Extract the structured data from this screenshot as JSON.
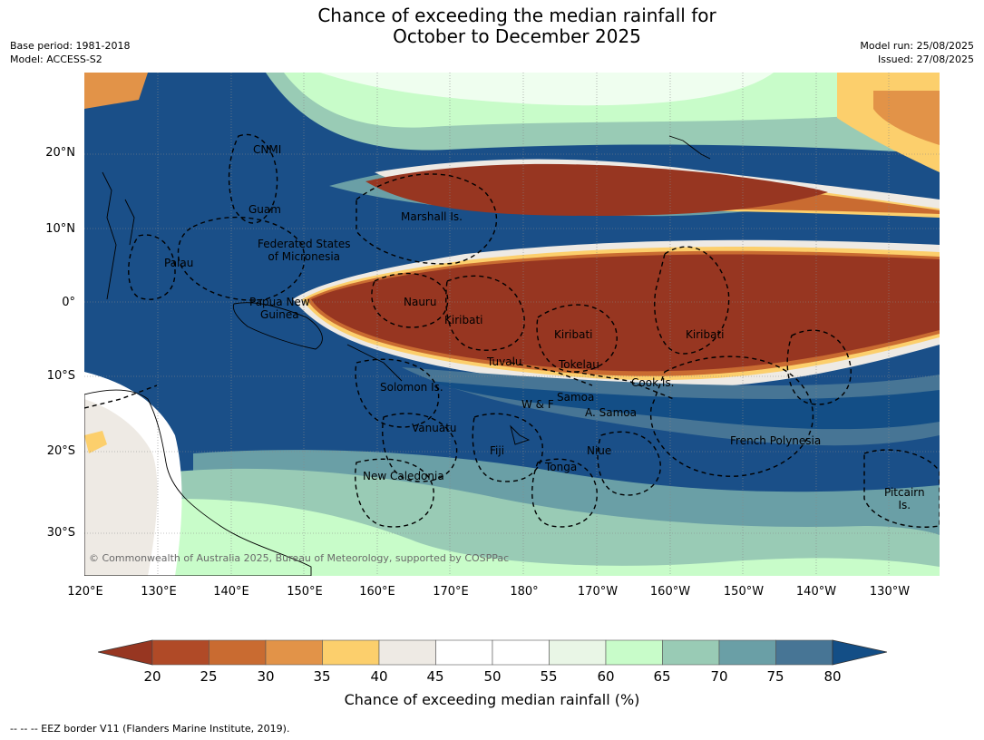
{
  "header": {
    "title_line1": "Chance of exceeding the median rainfall for",
    "title_line2": "October to December 2025",
    "base_period": "Base period: 1981-2018",
    "model": "Model: ACCESS-S2",
    "model_run": "Model run: 25/08/2025",
    "issued": "Issued: 27/08/2025"
  },
  "map": {
    "lat_ticks": [
      "20°N",
      "10°N",
      "0°",
      "10°S",
      "20°S",
      "30°S"
    ],
    "lon_ticks": [
      "120°E",
      "130°E",
      "140°E",
      "150°E",
      "160°E",
      "170°E",
      "180°",
      "170°W",
      "160°W",
      "150°W",
      "140°W",
      "130°W"
    ],
    "places": [
      "CNMI",
      "Guam",
      "Marshall Is.",
      "Federated States\nof Micronesia",
      "Palau",
      "Papua New\nGuinea",
      "Nauru",
      "Kiribati",
      "Kiribati",
      "Kiribati",
      "Tuvalu",
      "Tokelau",
      "Cook Is.",
      "Solomon Is.",
      "Samoa",
      "W & F",
      "A. Samoa",
      "Vanuatu",
      "Fiji",
      "Niue",
      "French Polynesia",
      "Tonga",
      "New Caledonia",
      "Pitcairn\nIs."
    ],
    "copyright": "© Commonwealth of Australia 2025, Bureau of Meteorology, supported by COSPPac"
  },
  "colorbar": {
    "ticks": [
      "20",
      "25",
      "30",
      "35",
      "40",
      "45",
      "50",
      "55",
      "60",
      "65",
      "70",
      "75",
      "80"
    ],
    "colors": [
      "#973621",
      "#b04a27",
      "#c96b31",
      "#e29348",
      "#fccf6c",
      "#eeeae4",
      "#ffffff",
      "#ffffff",
      "#e9f6e6",
      "#c8fcc9",
      "#99cbb5",
      "#6a9fa6",
      "#477595",
      "#134e86"
    ],
    "label": "Chance of exceeding median rainfall (%)"
  },
  "footer": {
    "eez_note": "--  --  -- EEZ border V11 (Flanders Marine Institute, 2019)."
  }
}
